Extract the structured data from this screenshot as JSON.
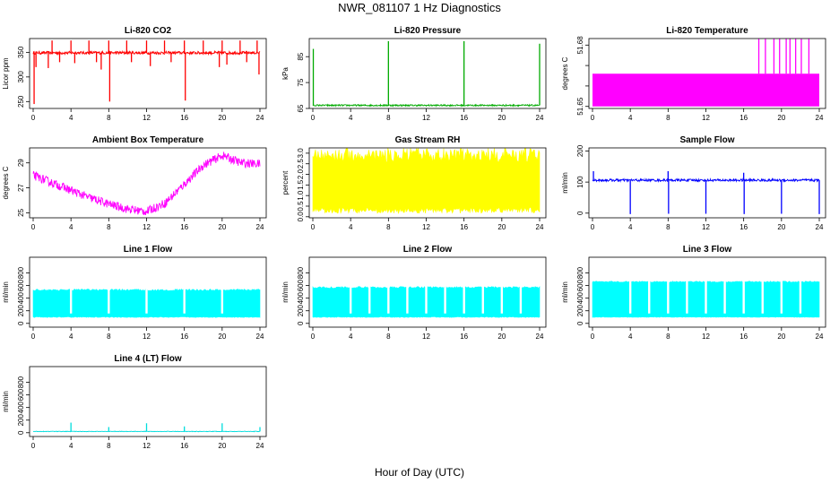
{
  "figure": {
    "title": "NWR_081107  1 Hz Diagnostics",
    "xlabel": "Hour of Day (UTC)"
  },
  "chart_data": [
    {
      "id": "co2",
      "type": "line",
      "title": "Li-820 CO2",
      "ylabel": "Licor ppm",
      "color": "#ff0000",
      "xlim": [
        0,
        24
      ],
      "ylim": [
        236,
        378
      ],
      "xticks": [
        0,
        4,
        8,
        12,
        16,
        20,
        24
      ],
      "yticks": [
        250,
        300,
        350
      ],
      "baseline": 349,
      "noise": 3,
      "fill": false,
      "spikes": [
        {
          "x": 0.1,
          "y": 245
        },
        {
          "x": 0.3,
          "y": 320
        },
        {
          "x": 1.6,
          "y": 318
        },
        {
          "x": 2.0,
          "y": 374
        },
        {
          "x": 2.8,
          "y": 330
        },
        {
          "x": 4.0,
          "y": 374
        },
        {
          "x": 4.4,
          "y": 328
        },
        {
          "x": 5.9,
          "y": 374
        },
        {
          "x": 6.7,
          "y": 330
        },
        {
          "x": 7.2,
          "y": 315
        },
        {
          "x": 8.0,
          "y": 374
        },
        {
          "x": 8.1,
          "y": 250
        },
        {
          "x": 9.9,
          "y": 374
        },
        {
          "x": 10.4,
          "y": 330
        },
        {
          "x": 12.0,
          "y": 374
        },
        {
          "x": 12.4,
          "y": 322
        },
        {
          "x": 13.9,
          "y": 374
        },
        {
          "x": 14.6,
          "y": 330
        },
        {
          "x": 16.0,
          "y": 374
        },
        {
          "x": 16.1,
          "y": 252
        },
        {
          "x": 18.0,
          "y": 374
        },
        {
          "x": 19.7,
          "y": 320
        },
        {
          "x": 20.0,
          "y": 374
        },
        {
          "x": 20.5,
          "y": 325
        },
        {
          "x": 21.9,
          "y": 374
        },
        {
          "x": 22.6,
          "y": 330
        },
        {
          "x": 23.7,
          "y": 374
        },
        {
          "x": 23.9,
          "y": 305
        }
      ]
    },
    {
      "id": "pressure",
      "type": "line",
      "title": "Li-820 Pressure",
      "ylabel": "kPa",
      "color": "#00aa00",
      "xlim": [
        0,
        24
      ],
      "ylim": [
        65,
        92
      ],
      "xticks": [
        0,
        4,
        8,
        12,
        16,
        20,
        24
      ],
      "yticks": [
        65,
        75,
        85
      ],
      "baseline": 66.2,
      "noise": 0.3,
      "fill": false,
      "spikes": [
        {
          "x": 0.05,
          "y": 88
        },
        {
          "x": 8.0,
          "y": 91
        },
        {
          "x": 16.0,
          "y": 91
        },
        {
          "x": 24.0,
          "y": 90
        }
      ]
    },
    {
      "id": "licor_temp",
      "type": "area",
      "title": "Li-820 Temperature",
      "ylabel": "degrees C",
      "color": "#ff00ff",
      "xlim": [
        0,
        24
      ],
      "ylim": [
        51.649,
        51.6832
      ],
      "xticks": [
        0,
        4,
        8,
        12,
        16,
        20,
        24
      ],
      "yticks": [
        51.65,
        51.66,
        51.67,
        51.68
      ],
      "ytick_labels": [
        "51.65",
        "",
        "",
        "51.68"
      ],
      "block": [
        51.65,
        51.666
      ],
      "spikes": [
        {
          "x": 17.6,
          "y": 51.683
        },
        {
          "x": 18.3,
          "y": 51.683
        },
        {
          "x": 19.2,
          "y": 51.683
        },
        {
          "x": 19.8,
          "y": 51.683
        },
        {
          "x": 20.5,
          "y": 51.683
        },
        {
          "x": 20.9,
          "y": 51.683
        },
        {
          "x": 21.5,
          "y": 51.683
        },
        {
          "x": 22.1,
          "y": 51.683
        },
        {
          "x": 22.9,
          "y": 51.683
        }
      ]
    },
    {
      "id": "box_temp",
      "type": "line",
      "title": "Ambient Box Temperature",
      "ylabel": "degrees C",
      "color": "#ff00ff",
      "xlim": [
        0,
        24
      ],
      "ylim": [
        24.6,
        30.2
      ],
      "xticks": [
        0,
        4,
        8,
        12,
        16,
        20,
        24
      ],
      "yticks": [
        25,
        27,
        29
      ],
      "noise": 0.35,
      "fill": false,
      "curve": [
        {
          "x": 0,
          "y": 28.0
        },
        {
          "x": 2,
          "y": 27.4
        },
        {
          "x": 4,
          "y": 26.8
        },
        {
          "x": 6,
          "y": 26.2
        },
        {
          "x": 8,
          "y": 25.7
        },
        {
          "x": 10,
          "y": 25.3
        },
        {
          "x": 12,
          "y": 25.1
        },
        {
          "x": 14,
          "y": 25.8
        },
        {
          "x": 16,
          "y": 27.3
        },
        {
          "x": 18,
          "y": 28.8
        },
        {
          "x": 20,
          "y": 29.6
        },
        {
          "x": 22,
          "y": 29.0
        },
        {
          "x": 24,
          "y": 28.9
        }
      ]
    },
    {
      "id": "rh",
      "type": "area",
      "title": "Gas Stream RH",
      "ylabel": "percent",
      "color": "#ffff00",
      "xlim": [
        0,
        24
      ],
      "ylim": [
        -0.05,
        3.25
      ],
      "xticks": [
        0,
        4,
        8,
        12,
        16,
        20,
        24
      ],
      "yticks": [
        0.0,
        0.5,
        1.0,
        1.5,
        2.0,
        2.5,
        3.0
      ],
      "ytick_labels": [
        "0.0",
        "0.5",
        "1.0",
        "1.5",
        "2.0",
        "2.5",
        "3.0"
      ],
      "band": [
        0.3,
        2.9
      ],
      "band_jitter": 0.35
    },
    {
      "id": "sample_flow",
      "type": "line",
      "title": "Sample Flow",
      "ylabel": "ml/min",
      "color": "#0000ff",
      "xlim": [
        0,
        24
      ],
      "ylim": [
        -15,
        210
      ],
      "xticks": [
        0,
        4,
        8,
        12,
        16,
        20,
        24
      ],
      "yticks": [
        0,
        100,
        200
      ],
      "baseline": 106,
      "noise": 4,
      "fill": false,
      "spikes": [
        {
          "x": 0.1,
          "y": 135
        },
        {
          "x": 4.0,
          "y": -3
        },
        {
          "x": 8.0,
          "y": 135
        },
        {
          "x": 8.05,
          "y": -2
        },
        {
          "x": 12.0,
          "y": -2
        },
        {
          "x": 16.0,
          "y": 130
        },
        {
          "x": 16.05,
          "y": -3
        },
        {
          "x": 20.0,
          "y": -2
        },
        {
          "x": 24.0,
          "y": -3
        }
      ]
    },
    {
      "id": "line1",
      "type": "area",
      "title": "Line 1 Flow",
      "ylabel": "ml/min",
      "color": "#00ffff",
      "xlim": [
        0,
        24
      ],
      "ylim": [
        -60,
        1050
      ],
      "xticks": [
        0,
        4,
        8,
        12,
        16,
        20,
        24
      ],
      "yticks": [
        0,
        200,
        400,
        600,
        800
      ],
      "band": [
        100,
        530
      ],
      "band_jitter": 15,
      "gaps": [
        4,
        8,
        12,
        16,
        20
      ]
    },
    {
      "id": "line2",
      "type": "area",
      "title": "Line 2 Flow",
      "ylabel": "ml/min",
      "color": "#00ffff",
      "xlim": [
        0,
        24
      ],
      "ylim": [
        -60,
        1050
      ],
      "xticks": [
        0,
        4,
        8,
        12,
        16,
        20,
        24
      ],
      "yticks": [
        0,
        200,
        400,
        600,
        800
      ],
      "band": [
        100,
        570
      ],
      "band_jitter": 15,
      "gaps": [
        4,
        6,
        8,
        10,
        12,
        14,
        16,
        18,
        20,
        22
      ]
    },
    {
      "id": "line3",
      "type": "area",
      "title": "Line 3 Flow",
      "ylabel": "ml/min",
      "color": "#00ffff",
      "xlim": [
        0,
        24
      ],
      "ylim": [
        -60,
        1050
      ],
      "xticks": [
        0,
        4,
        8,
        12,
        16,
        20,
        24
      ],
      "yticks": [
        0,
        200,
        400,
        600,
        800
      ],
      "band": [
        100,
        660
      ],
      "band_jitter": 10,
      "gaps": [
        4,
        6,
        8,
        10,
        12,
        14,
        16,
        18,
        20,
        22
      ]
    },
    {
      "id": "line4",
      "type": "line",
      "title": "Line 4 (LT) Flow",
      "ylabel": "ml/min",
      "color": "#00dddd",
      "xlim": [
        0,
        24
      ],
      "ylim": [
        -60,
        1050
      ],
      "xticks": [
        0,
        4,
        8,
        12,
        16,
        20,
        24
      ],
      "yticks": [
        0,
        200,
        400,
        600,
        800
      ],
      "baseline": 20,
      "noise": 4,
      "fill": false,
      "spikes": [
        {
          "x": 4.0,
          "y": 160
        },
        {
          "x": 8.0,
          "y": 90
        },
        {
          "x": 12.0,
          "y": 150
        },
        {
          "x": 16.0,
          "y": 100
        },
        {
          "x": 20.0,
          "y": 150
        },
        {
          "x": 24.0,
          "y": 90
        }
      ]
    }
  ]
}
